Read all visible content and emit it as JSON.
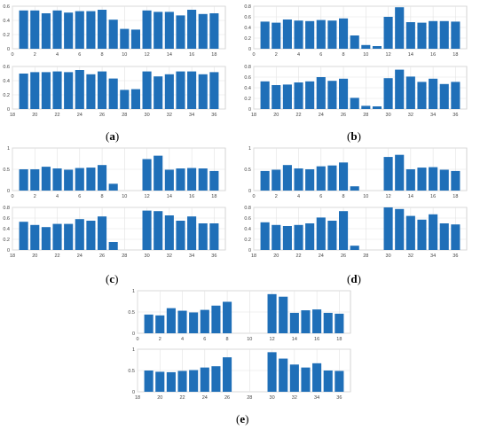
{
  "chart_data": [
    {
      "panel": "(a)",
      "type": "bar",
      "color": "#1f6fb8",
      "top": {
        "x": [
          1,
          2,
          3,
          4,
          5,
          6,
          7,
          8,
          9,
          10,
          11,
          12,
          13,
          14,
          15,
          16,
          17,
          18
        ],
        "values": [
          0.54,
          0.54,
          0.5,
          0.54,
          0.51,
          0.53,
          0.53,
          0.55,
          0.41,
          0.28,
          0.27,
          0.54,
          0.52,
          0.52,
          0.47,
          0.55,
          0.49,
          0.5
        ],
        "ylim": [
          0,
          0.6
        ],
        "yticks": [
          "0",
          "0.2",
          "0.4",
          "0.6"
        ],
        "xticks": [
          "0",
          "2",
          "4",
          "6",
          "8",
          "10",
          "12",
          "14",
          "16",
          "18"
        ]
      },
      "bottom": {
        "x": [
          19,
          20,
          21,
          22,
          23,
          24,
          25,
          26,
          27,
          28,
          29,
          30,
          31,
          32,
          33,
          34,
          35,
          36
        ],
        "values": [
          0.5,
          0.52,
          0.52,
          0.53,
          0.52,
          0.55,
          0.49,
          0.53,
          0.43,
          0.27,
          0.28,
          0.53,
          0.46,
          0.49,
          0.53,
          0.53,
          0.49,
          0.52
        ],
        "ylim": [
          0,
          0.6
        ],
        "yticks": [
          "0",
          "0.2",
          "0.4",
          "0.6"
        ],
        "xticks": [
          "18",
          "20",
          "22",
          "24",
          "26",
          "28",
          "30",
          "32",
          "34",
          "36"
        ]
      }
    },
    {
      "panel": "(b)",
      "type": "bar",
      "color": "#1f6fb8",
      "top": {
        "x": [
          1,
          2,
          3,
          4,
          5,
          6,
          7,
          8,
          9,
          10,
          11,
          12,
          13,
          14,
          15,
          16,
          17,
          18
        ],
        "values": [
          0.51,
          0.49,
          0.55,
          0.53,
          0.52,
          0.54,
          0.53,
          0.57,
          0.25,
          0.07,
          0.05,
          0.6,
          0.78,
          0.5,
          0.49,
          0.52,
          0.52,
          0.51
        ],
        "ylim": [
          0,
          0.8
        ],
        "yticks": [
          "0",
          "0.2",
          "0.4",
          "0.6",
          "0.8"
        ],
        "xticks": [
          "0",
          "2",
          "4",
          "6",
          "8",
          "10",
          "12",
          "14",
          "16",
          "18"
        ]
      },
      "bottom": {
        "x": [
          19,
          20,
          21,
          22,
          23,
          24,
          25,
          26,
          27,
          28,
          29,
          30,
          31,
          32,
          33,
          34,
          35,
          36
        ],
        "values": [
          0.52,
          0.45,
          0.46,
          0.5,
          0.52,
          0.6,
          0.53,
          0.57,
          0.21,
          0.06,
          0.05,
          0.58,
          0.74,
          0.61,
          0.51,
          0.57,
          0.47,
          0.51
        ],
        "ylim": [
          0,
          0.8
        ],
        "yticks": [
          "0",
          "0.2",
          "0.4",
          "0.6",
          "0.8"
        ],
        "xticks": [
          "18",
          "20",
          "22",
          "24",
          "26",
          "28",
          "30",
          "32",
          "34",
          "36"
        ]
      }
    },
    {
      "panel": "(c)",
      "type": "bar",
      "color": "#1f6fb8",
      "top": {
        "x": [
          1,
          2,
          3,
          4,
          5,
          6,
          7,
          8,
          9,
          10,
          11,
          12,
          13,
          14,
          15,
          16,
          17,
          18
        ],
        "values": [
          0.5,
          0.5,
          0.56,
          0.52,
          0.49,
          0.53,
          0.54,
          0.6,
          0.16,
          0,
          0,
          0.74,
          0.82,
          0.49,
          0.52,
          0.53,
          0.52,
          0.46
        ],
        "ylim": [
          0,
          1
        ],
        "yticks": [
          "0",
          "0.5",
          "1"
        ],
        "xticks": [
          "0",
          "2",
          "4",
          "6",
          "8",
          "10",
          "12",
          "14",
          "16",
          "18"
        ]
      },
      "bottom": {
        "x": [
          19,
          20,
          21,
          22,
          23,
          24,
          25,
          26,
          27,
          28,
          29,
          30,
          31,
          32,
          33,
          34,
          35,
          36
        ],
        "values": [
          0.53,
          0.47,
          0.43,
          0.49,
          0.49,
          0.58,
          0.55,
          0.63,
          0.15,
          0,
          0,
          0.74,
          0.73,
          0.65,
          0.55,
          0.63,
          0.5,
          0.5
        ],
        "ylim": [
          0,
          0.8
        ],
        "yticks": [
          "0",
          "0.2",
          "0.4",
          "0.6",
          "0.8"
        ],
        "xticks": [
          "18",
          "20",
          "22",
          "24",
          "26",
          "28",
          "30",
          "32",
          "34",
          "36"
        ]
      }
    },
    {
      "panel": "(d)",
      "type": "bar",
      "color": "#1f6fb8",
      "top": {
        "x": [
          1,
          2,
          3,
          4,
          5,
          6,
          7,
          8,
          9,
          10,
          11,
          12,
          13,
          14,
          15,
          16,
          17,
          18
        ],
        "values": [
          0.46,
          0.49,
          0.6,
          0.52,
          0.5,
          0.57,
          0.59,
          0.66,
          0.1,
          0,
          0,
          0.79,
          0.84,
          0.5,
          0.54,
          0.55,
          0.49,
          0.46
        ],
        "ylim": [
          0,
          1
        ],
        "yticks": [
          "0",
          "0.5",
          "1"
        ],
        "xticks": [
          "0",
          "2",
          "4",
          "6",
          "8",
          "10",
          "12",
          "14",
          "16",
          "18"
        ]
      },
      "bottom": {
        "x": [
          19,
          20,
          21,
          22,
          23,
          24,
          25,
          26,
          27,
          28,
          29,
          30,
          31,
          32,
          33,
          34,
          35,
          36
        ],
        "values": [
          0.52,
          0.47,
          0.45,
          0.47,
          0.5,
          0.61,
          0.55,
          0.73,
          0.08,
          0,
          0,
          0.8,
          0.77,
          0.64,
          0.57,
          0.67,
          0.5,
          0.48
        ],
        "ylim": [
          0,
          0.8
        ],
        "yticks": [
          "0",
          "0.2",
          "0.4",
          "0.6",
          "0.8"
        ],
        "xticks": [
          "18",
          "20",
          "22",
          "24",
          "26",
          "28",
          "30",
          "32",
          "34",
          "36"
        ]
      }
    },
    {
      "panel": "(e)",
      "type": "bar",
      "color": "#1f6fb8",
      "top": {
        "x": [
          1,
          2,
          3,
          4,
          5,
          6,
          7,
          8,
          9,
          10,
          11,
          12,
          13,
          14,
          15,
          16,
          17,
          18
        ],
        "values": [
          0.44,
          0.42,
          0.59,
          0.53,
          0.49,
          0.55,
          0.65,
          0.74,
          0,
          0,
          0,
          0.92,
          0.86,
          0.48,
          0.54,
          0.56,
          0.48,
          0.46
        ],
        "ylim": [
          0,
          1
        ],
        "yticks": [
          "0",
          "0.5",
          "1"
        ],
        "xticks": [
          "0",
          "2",
          "4",
          "6",
          "8",
          "10",
          "12",
          "14",
          "16",
          "18"
        ]
      },
      "bottom": {
        "x": [
          19,
          20,
          21,
          22,
          23,
          24,
          25,
          26,
          27,
          28,
          29,
          30,
          31,
          32,
          33,
          34,
          35,
          36
        ],
        "values": [
          0.5,
          0.47,
          0.46,
          0.49,
          0.51,
          0.57,
          0.6,
          0.81,
          0,
          0,
          0,
          0.93,
          0.78,
          0.64,
          0.57,
          0.67,
          0.5,
          0.49
        ],
        "ylim": [
          0,
          1
        ],
        "yticks": [
          "0",
          "0.5",
          "1"
        ],
        "xticks": [
          "18",
          "20",
          "22",
          "24",
          "26",
          "28",
          "30",
          "32",
          "34",
          "36"
        ]
      }
    }
  ]
}
